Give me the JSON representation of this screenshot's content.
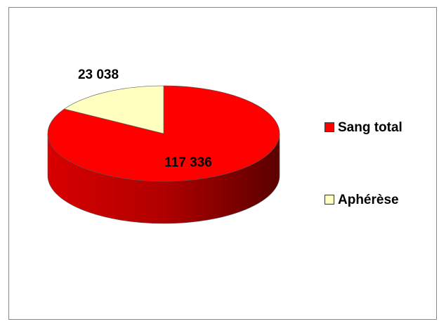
{
  "chart_data": {
    "type": "pie",
    "categories": [
      "Sang total",
      "Aphérèse"
    ],
    "values": [
      117336,
      23038
    ],
    "value_labels": [
      "117 336",
      "23 038"
    ],
    "colors": [
      "#ff0000",
      "#ffffc0"
    ],
    "legend": "right"
  }
}
